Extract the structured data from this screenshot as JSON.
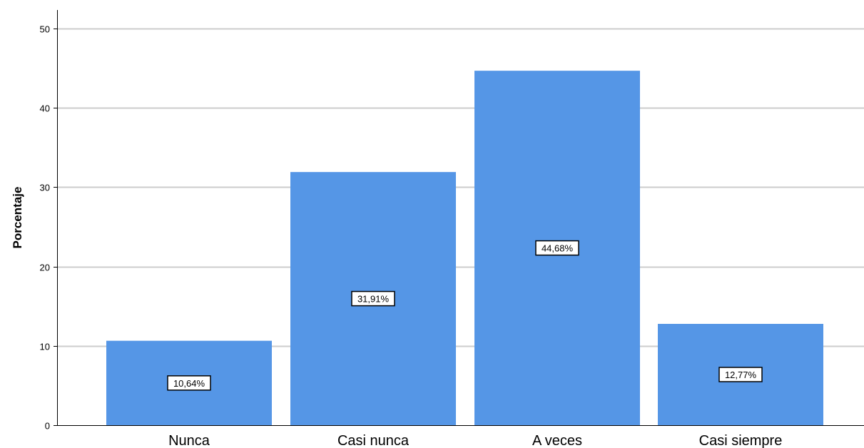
{
  "chart_data": {
    "type": "bar",
    "categories": [
      "Nunca",
      "Casi nunca",
      "A veces",
      "Casi siempre"
    ],
    "values": [
      10.64,
      31.91,
      44.68,
      12.77
    ],
    "data_labels": [
      "10,64%",
      "31,91%",
      "44,68%",
      "12,77%"
    ],
    "title": "",
    "xlabel": "",
    "ylabel": "Porcentaje",
    "ylim": [
      0,
      50
    ],
    "yticks": [
      0,
      10,
      20,
      30,
      40,
      50
    ],
    "ytick_labels": [
      "0",
      "10",
      "20",
      "30",
      "40",
      "50"
    ],
    "grid": "horizontal",
    "legend": "none",
    "bar_color": "#5596e6",
    "grid_color": "#cccccc"
  }
}
